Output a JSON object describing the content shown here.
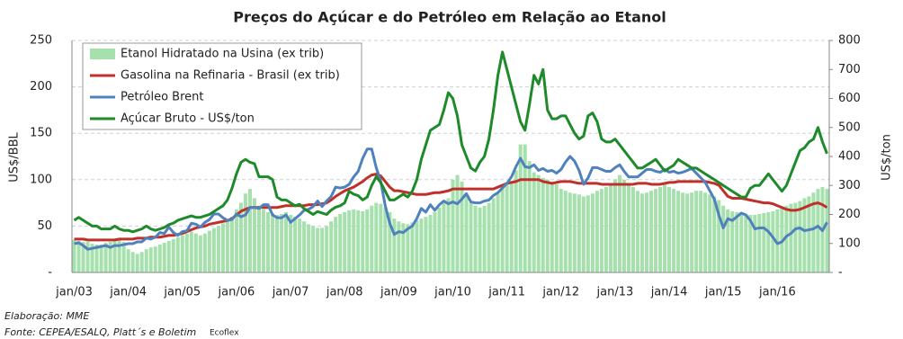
{
  "chart_data": {
    "type": "bar",
    "title": "Preços do Açúcar e do Petróleo em Relação ao Etanol",
    "y_label": "US$/BBL",
    "y2_label": "US$/ton",
    "notes": [
      "Elaboração: MME",
      "Fonte: CEPEA/ESALQ, Platt´s e Boletim",
      "Ecoflex"
    ],
    "categories": [
      "jan/03",
      null,
      null,
      null,
      null,
      null,
      null,
      null,
      null,
      null,
      null,
      null,
      "jan/04",
      null,
      null,
      null,
      null,
      null,
      null,
      null,
      null,
      null,
      null,
      null,
      "jan/05",
      null,
      null,
      null,
      null,
      null,
      null,
      null,
      null,
      null,
      null,
      null,
      "jan/06",
      null,
      null,
      null,
      null,
      null,
      null,
      null,
      null,
      null,
      null,
      null,
      "jan/07",
      null,
      null,
      null,
      null,
      null,
      null,
      null,
      null,
      null,
      null,
      null,
      "jan/08",
      null,
      null,
      null,
      null,
      null,
      null,
      null,
      null,
      null,
      null,
      null,
      "jan/09",
      null,
      null,
      null,
      null,
      null,
      null,
      null,
      null,
      null,
      null,
      null,
      "jan/10",
      null,
      null,
      null,
      null,
      null,
      null,
      null,
      null,
      null,
      null,
      null,
      "jan/11",
      null,
      null,
      null,
      null,
      null,
      null,
      null,
      null,
      null,
      null,
      null,
      "jan/12",
      null,
      null,
      null,
      null,
      null,
      null,
      null,
      null,
      null,
      null,
      null,
      "jan/13",
      null,
      null,
      null,
      null,
      null,
      null,
      null,
      null,
      null,
      null,
      null,
      "jan/14",
      null,
      null,
      null,
      null,
      null,
      null,
      null,
      null,
      null,
      null,
      null,
      "jan/15",
      null,
      null,
      null,
      null,
      null,
      null,
      null,
      null,
      null,
      null,
      null,
      "jan/16",
      null,
      null,
      null,
      null,
      null,
      null,
      null,
      null,
      null,
      null,
      null
    ],
    "ylim": [
      0,
      250
    ],
    "yticks": [
      {
        "value": 0,
        "label": "-"
      },
      50,
      100,
      150,
      200,
      250
    ],
    "y2lim": [
      0,
      800
    ],
    "y2ticks": [
      {
        "value": 0,
        "label": "-"
      },
      100,
      200,
      300,
      400,
      500,
      600,
      700,
      800
    ],
    "grid": true,
    "legend": "upper left",
    "series": [
      {
        "name": "Etanol Hidratado na Usina (ex trib)",
        "type": "bar",
        "color": "#a6e0ad",
        "values": [
          35,
          34,
          33,
          33,
          31,
          30,
          30,
          32,
          33,
          34,
          35,
          33,
          25,
          22,
          20,
          22,
          25,
          27,
          28,
          30,
          32,
          34,
          36,
          38,
          40,
          42,
          44,
          42,
          40,
          42,
          45,
          48,
          50,
          53,
          56,
          60,
          68,
          75,
          85,
          90,
          80,
          72,
          68,
          65,
          64,
          62,
          63,
          65,
          62,
          60,
          58,
          55,
          52,
          50,
          48,
          48,
          50,
          55,
          60,
          63,
          65,
          67,
          68,
          67,
          66,
          68,
          72,
          75,
          74,
          70,
          65,
          58,
          55,
          53,
          52,
          54,
          56,
          58,
          60,
          62,
          65,
          70,
          75,
          80,
          100,
          105,
          98,
          85,
          75,
          72,
          70,
          72,
          75,
          80,
          85,
          92,
          95,
          98,
          110,
          138,
          138,
          120,
          108,
          105,
          102,
          100,
          98,
          95,
          90,
          88,
          86,
          85,
          84,
          82,
          83,
          85,
          88,
          90,
          92,
          95,
          100,
          105,
          100,
          95,
          92,
          88,
          85,
          86,
          88,
          90,
          92,
          95,
          92,
          90,
          88,
          86,
          85,
          86,
          88,
          88,
          86,
          84,
          82,
          78,
          72,
          68,
          66,
          65,
          64,
          63,
          62,
          62,
          63,
          64,
          65,
          66,
          68,
          70,
          72,
          74,
          75,
          77,
          80,
          82,
          86,
          90,
          92,
          90
        ]
      },
      {
        "name": "Gasolina na Refinaria - Brasil (ex trib)",
        "type": "line",
        "color": "#c0302a",
        "values": [
          36,
          36,
          36,
          35,
          35,
          35,
          35,
          35,
          35,
          35,
          36,
          36,
          36,
          36,
          37,
          37,
          37,
          38,
          38,
          38,
          39,
          40,
          40,
          41,
          42,
          44,
          46,
          48,
          49,
          50,
          52,
          53,
          54,
          55,
          56,
          58,
          62,
          66,
          68,
          70,
          70,
          70,
          70,
          70,
          70,
          70,
          71,
          72,
          72,
          72,
          72,
          72,
          73,
          73,
          73,
          74,
          75,
          78,
          82,
          85,
          88,
          90,
          92,
          95,
          98,
          102,
          105,
          106,
          104,
          98,
          92,
          88,
          88,
          87,
          86,
          85,
          84,
          84,
          84,
          85,
          86,
          86,
          87,
          88,
          90,
          90,
          90,
          90,
          90,
          90,
          90,
          90,
          90,
          90,
          92,
          94,
          96,
          97,
          98,
          100,
          100,
          100,
          100,
          100,
          98,
          97,
          96,
          97,
          98,
          98,
          98,
          97,
          96,
          96,
          96,
          96,
          96,
          95,
          95,
          95,
          95,
          95,
          95,
          95,
          95,
          96,
          96,
          96,
          95,
          95,
          95,
          96,
          97,
          97,
          98,
          98,
          98,
          98,
          98,
          98,
          98,
          97,
          96,
          94,
          88,
          82,
          80,
          80,
          80,
          79,
          78,
          77,
          76,
          75,
          75,
          74,
          72,
          70,
          68,
          67,
          67,
          68,
          70,
          72,
          74,
          75,
          73,
          70
        ]
      },
      {
        "name": "Petróleo Brent",
        "type": "line",
        "color": "#4f81bd",
        "values": [
          31,
          32,
          29,
          25,
          26,
          27,
          28,
          29,
          27,
          29,
          29,
          30,
          31,
          31,
          33,
          33,
          37,
          36,
          38,
          43,
          42,
          49,
          43,
          40,
          44,
          45,
          53,
          52,
          49,
          54,
          57,
          63,
          63,
          59,
          56,
          57,
          63,
          60,
          62,
          70,
          70,
          69,
          73,
          73,
          62,
          59,
          59,
          62,
          54,
          58,
          62,
          67,
          68,
          71,
          77,
          71,
          77,
          82,
          92,
          91,
          92,
          95,
          103,
          109,
          123,
          133,
          133,
          113,
          98,
          72,
          53,
          41,
          44,
          43,
          47,
          50,
          58,
          69,
          65,
          73,
          67,
          73,
          77,
          74,
          76,
          74,
          79,
          85,
          76,
          75,
          75,
          77,
          78,
          83,
          86,
          91,
          96,
          103,
          114,
          123,
          114,
          113,
          116,
          110,
          112,
          109,
          110,
          107,
          111,
          119,
          125,
          120,
          110,
          95,
          102,
          113,
          113,
          111,
          109,
          109,
          113,
          116,
          109,
          103,
          103,
          103,
          107,
          111,
          111,
          109,
          108,
          111,
          108,
          109,
          107,
          108,
          110,
          112,
          107,
          102,
          97,
          88,
          79,
          62,
          48,
          58,
          56,
          60,
          64,
          62,
          56,
          47,
          48,
          48,
          44,
          38,
          31,
          33,
          39,
          42,
          47,
          48,
          45,
          46,
          47,
          50,
          45,
          54
        ]
      },
      {
        "name": "Açúcar Bruto - US$/ton",
        "type": "line",
        "axis": "y2",
        "color": "#1e8a2a",
        "values": [
          180,
          190,
          180,
          170,
          160,
          160,
          150,
          150,
          150,
          160,
          150,
          145,
          145,
          140,
          145,
          150,
          160,
          150,
          145,
          150,
          155,
          165,
          170,
          180,
          185,
          190,
          195,
          190,
          190,
          195,
          200,
          210,
          220,
          230,
          250,
          290,
          340,
          380,
          390,
          380,
          375,
          330,
          330,
          330,
          320,
          260,
          250,
          250,
          240,
          230,
          235,
          220,
          210,
          200,
          210,
          205,
          200,
          215,
          225,
          230,
          240,
          280,
          270,
          265,
          250,
          260,
          300,
          330,
          310,
          280,
          250,
          250,
          260,
          270,
          260,
          280,
          320,
          390,
          440,
          490,
          500,
          510,
          560,
          620,
          600,
          540,
          440,
          400,
          360,
          350,
          380,
          400,
          460,
          560,
          680,
          760,
          700,
          640,
          580,
          520,
          490,
          580,
          680,
          650,
          700,
          560,
          530,
          530,
          540,
          540,
          510,
          480,
          460,
          470,
          540,
          550,
          520,
          460,
          450,
          450,
          460,
          440,
          420,
          400,
          380,
          360,
          360,
          370,
          380,
          390,
          370,
          350,
          360,
          370,
          390,
          380,
          370,
          360,
          360,
          350,
          340,
          330,
          320,
          310,
          300,
          290,
          280,
          270,
          260,
          260,
          290,
          300,
          300,
          320,
          340,
          320,
          300,
          280,
          300,
          340,
          380,
          420,
          430,
          450,
          460,
          500,
          450,
          410
        ]
      }
    ]
  }
}
